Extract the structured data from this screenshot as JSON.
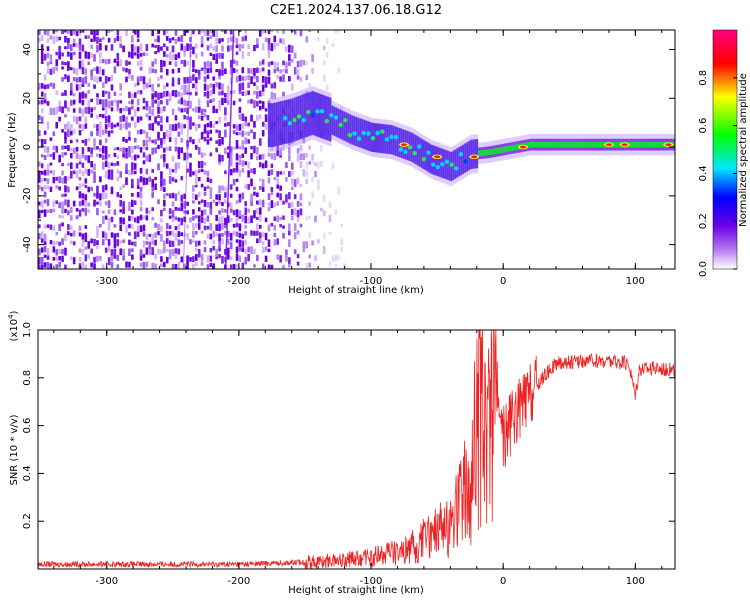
{
  "title": "C2E1.2024.137.06.18.G12",
  "chart_data": [
    {
      "type": "heatmap",
      "xlabel": "Height of straight line (km)",
      "ylabel": "Frequency (Hz)",
      "xlim": [
        -352,
        130
      ],
      "ylim": [
        -50,
        48
      ],
      "xticks": [
        -300,
        -200,
        -100,
        0,
        100
      ],
      "yticks": [
        -40,
        -20,
        0,
        20,
        40
      ],
      "colorbar": {
        "label": "Normalized spectral amplitude",
        "range": [
          0,
          1
        ],
        "ticks": [
          "0.0",
          "0.2",
          "0.4",
          "0.6",
          "0.8"
        ],
        "colors": [
          "#ffffff",
          "#7a00e6",
          "#0000ff",
          "#00e5ff",
          "#00ff00",
          "#ffff00",
          "#ff0000",
          "#ff0080"
        ]
      },
      "ridge": {
        "x": [
          -175,
          -160,
          -145,
          -130,
          -115,
          -100,
          -85,
          -70,
          -55,
          -40,
          -25,
          -10,
          0,
          20,
          40,
          60,
          80,
          100,
          130
        ],
        "y": [
          9,
          11,
          14,
          11,
          7,
          4,
          3,
          0,
          -5,
          -8,
          -3,
          -2,
          -1,
          1,
          1,
          1,
          1,
          1,
          1
        ]
      },
      "grid": false
    },
    {
      "type": "line",
      "xlabel": "Height of straight line (km)",
      "ylabel": "SNR (10 * v/v)",
      "multiplier": "(x10",
      "multiplier_exp": "4",
      "multiplier_close": ")",
      "xlim": [
        -352,
        130
      ],
      "ylim": [
        0,
        1.0
      ],
      "xticks": [
        -300,
        -200,
        -100,
        0,
        100
      ],
      "yticks": [
        "0.2",
        "0.4",
        "0.6",
        "0.8",
        "1.0"
      ],
      "series": [
        {
          "color": "#ee2222",
          "x": [
            -350,
            -300,
            -250,
            -200,
            -170,
            -140,
            -120,
            -100,
            -90,
            -80,
            -70,
            -60,
            -50,
            -40,
            -35,
            -30,
            -25,
            -20,
            -18,
            -15,
            -12,
            -10,
            -5,
            0,
            5,
            10,
            20,
            30,
            40,
            60,
            80,
            95,
            100,
            103,
            110,
            120,
            130
          ],
          "y": [
            0.02,
            0.02,
            0.02,
            0.02,
            0.025,
            0.03,
            0.04,
            0.05,
            0.06,
            0.07,
            0.09,
            0.12,
            0.15,
            0.2,
            0.25,
            0.3,
            0.42,
            0.6,
            0.7,
            0.6,
            0.55,
            0.75,
            0.72,
            0.55,
            0.6,
            0.65,
            0.72,
            0.8,
            0.86,
            0.87,
            0.87,
            0.86,
            0.73,
            0.84,
            0.84,
            0.84,
            0.83
          ]
        }
      ],
      "grid": false
    }
  ]
}
